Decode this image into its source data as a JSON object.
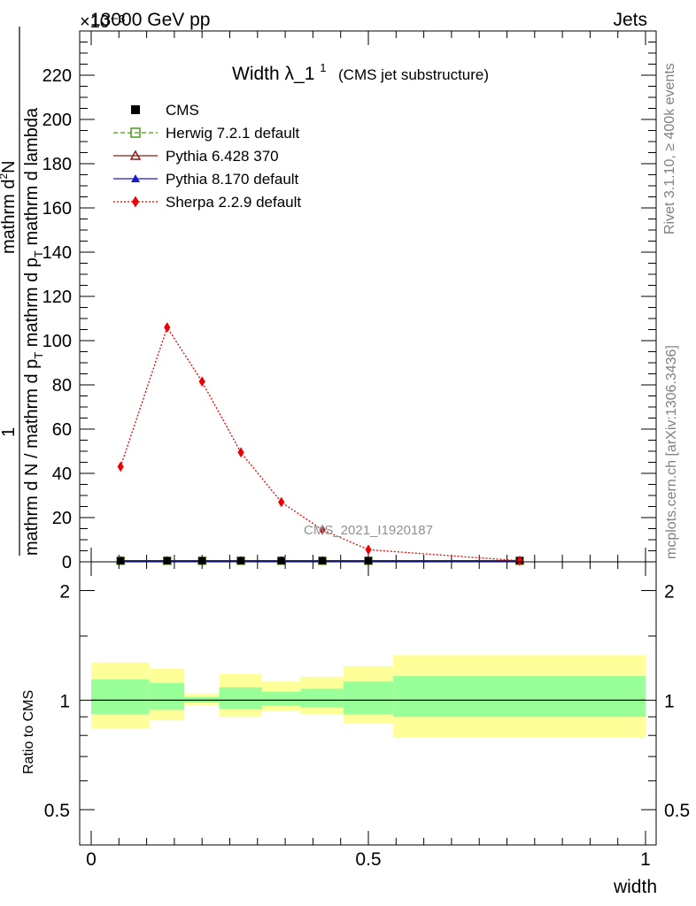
{
  "header": {
    "left": "13000 GeV pp",
    "right": "Jets",
    "exponent": "×10⁻³"
  },
  "side_labels": {
    "rivet": "Rivet 3.1.10, ≥ 400k events",
    "mcplots": "mcplots.cern.ch [arXiv:1306.3436]"
  },
  "watermark": "CMS_2021_I1920187",
  "chart_data": [
    {
      "type": "line",
      "title": "Width λ_1",
      "title_sup": "1",
      "subtitle": "(CMS jet substructure)",
      "ylabel_parts": {
        "num_prefix": "1",
        "num_main": "mathrm d",
        "num_sup": "2",
        "num_end": "N",
        "den_main": "mathrm d N / mathrm d p",
        "den_sub": "T",
        "den_end": " mathrm d p",
        "den_sub2": "T",
        "den_tail": " mathrm d lambda"
      },
      "xlim": [
        0,
        1
      ],
      "ylim": [
        0,
        240
      ],
      "yticks": [
        0,
        20,
        40,
        60,
        80,
        100,
        120,
        140,
        160,
        180,
        200,
        220
      ],
      "legend": [
        {
          "label": "CMS",
          "color": "#000000",
          "marker": "square-filled",
          "line": "none"
        },
        {
          "label": "Herwig 7.2.1 default",
          "color": "#4a9a1a",
          "marker": "square-open",
          "line": "dashed"
        },
        {
          "label": "Pythia 6.428 370",
          "color": "#8b1a1a",
          "marker": "triangle-open",
          "line": "solid"
        },
        {
          "label": "Pythia 8.170 default",
          "color": "#1a1acc",
          "marker": "triangle-filled",
          "line": "solid"
        },
        {
          "label": "Sherpa 2.2.9 default",
          "color": "#ee0000",
          "marker": "diamond-filled",
          "line": "dotted"
        }
      ],
      "bin_edges": [
        0,
        0.105,
        0.168,
        0.231,
        0.308,
        0.378,
        0.455,
        0.545,
        1.0
      ],
      "x": [
        0.053,
        0.137,
        0.2,
        0.27,
        0.343,
        0.417,
        0.5,
        0.773
      ],
      "series": [
        {
          "name": "CMS",
          "values": [
            0.5,
            0.5,
            0.5,
            0.5,
            0.5,
            0.5,
            0.5,
            0.5
          ]
        },
        {
          "name": "Herwig 7.2.1 default",
          "values": [
            0.5,
            0.5,
            0.5,
            0.5,
            0.5,
            0.5,
            0.5,
            0.5
          ]
        },
        {
          "name": "Pythia 6.428 370",
          "values": [
            0.5,
            0.5,
            0.5,
            0.5,
            0.5,
            0.5,
            0.5,
            0.5
          ]
        },
        {
          "name": "Pythia 8.170 default",
          "values": [
            0.5,
            0.5,
            0.5,
            0.5,
            0.5,
            0.5,
            0.5,
            0.5
          ]
        },
        {
          "name": "Sherpa 2.2.9 default",
          "values": [
            43,
            106,
            81.5,
            49.5,
            27,
            14.5,
            5.5,
            0.5
          ]
        }
      ]
    },
    {
      "type": "area",
      "ylabel": "Ratio to CMS",
      "xlabel": "width",
      "xlim": [
        0,
        1
      ],
      "ylim": [
        0.4,
        2.4
      ],
      "yscale": "log",
      "yticks": [
        0.5,
        1,
        2
      ],
      "ytick_labels": [
        "0.5",
        "1",
        "2"
      ],
      "xticks": [
        0,
        0.5,
        1
      ],
      "xtick_labels": [
        "0",
        "0.5",
        "1"
      ],
      "bin_edges": [
        0,
        0.105,
        0.168,
        0.231,
        0.308,
        0.378,
        0.455,
        0.545,
        1.0
      ],
      "band_inner": {
        "color": "#99ff99",
        "low": [
          0.916,
          0.94,
          0.985,
          0.945,
          0.965,
          0.955,
          0.915,
          0.9
        ],
        "high": [
          1.14,
          1.115,
          1.02,
          1.085,
          1.055,
          1.075,
          1.125,
          1.165
        ]
      },
      "band_outer": {
        "color": "#ffff99",
        "low": [
          0.835,
          0.88,
          0.97,
          0.9,
          0.935,
          0.915,
          0.862,
          0.79
        ],
        "high": [
          1.27,
          1.22,
          1.04,
          1.18,
          1.125,
          1.16,
          1.24,
          1.33
        ]
      },
      "reference": 1
    }
  ]
}
